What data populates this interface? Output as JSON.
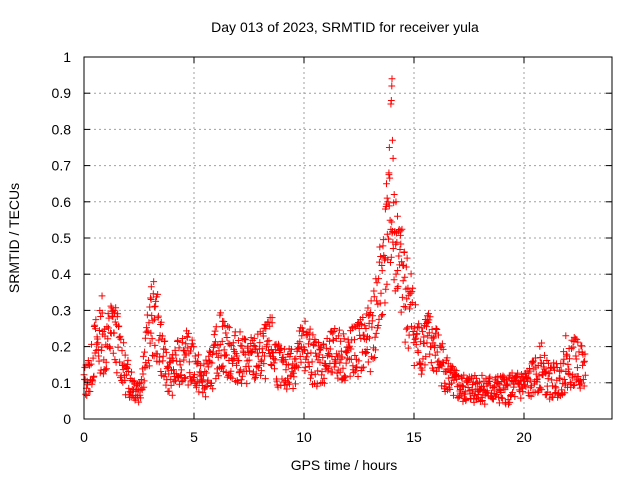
{
  "chart_data": {
    "type": "scatter",
    "title": "Day 013 of 2023, SRMTID for receiver yula",
    "xlabel": "GPS time / hours",
    "ylabel": "SRMTID / TECUs",
    "xlim": [
      0,
      24
    ],
    "ylim": [
      0,
      1
    ],
    "xticks": [
      0,
      5,
      10,
      15,
      20
    ],
    "xtick_labels": [
      "0",
      "5",
      "10",
      "15",
      "20"
    ],
    "yticks": [
      0,
      0.1,
      0.2,
      0.3,
      0.4,
      0.5,
      0.6,
      0.7,
      0.8,
      0.9,
      1
    ],
    "ytick_labels": [
      "0",
      "0.1",
      "0.2",
      "0.3",
      "0.4",
      "0.5",
      "0.6",
      "0.7",
      "0.8",
      "0.9",
      "1"
    ],
    "grid": true,
    "marker": "+",
    "color": "#ff0000",
    "series": [
      {
        "name": "SRMTID",
        "profile": [
          [
            0.0,
            0.1
          ],
          [
            0.3,
            0.13
          ],
          [
            0.5,
            0.2
          ],
          [
            0.8,
            0.22
          ],
          [
            1.0,
            0.2
          ],
          [
            1.3,
            0.25
          ],
          [
            1.6,
            0.2
          ],
          [
            1.9,
            0.12
          ],
          [
            2.2,
            0.1
          ],
          [
            2.5,
            0.08
          ],
          [
            2.8,
            0.18
          ],
          [
            3.1,
            0.28
          ],
          [
            3.4,
            0.24
          ],
          [
            3.7,
            0.14
          ],
          [
            4.0,
            0.12
          ],
          [
            4.5,
            0.18
          ],
          [
            5.0,
            0.15
          ],
          [
            5.4,
            0.1
          ],
          [
            5.8,
            0.14
          ],
          [
            6.2,
            0.22
          ],
          [
            6.6,
            0.18
          ],
          [
            7.0,
            0.17
          ],
          [
            7.5,
            0.16
          ],
          [
            8.0,
            0.17
          ],
          [
            8.5,
            0.2
          ],
          [
            9.0,
            0.13
          ],
          [
            9.5,
            0.15
          ],
          [
            10.0,
            0.2
          ],
          [
            10.5,
            0.16
          ],
          [
            11.0,
            0.16
          ],
          [
            11.5,
            0.18
          ],
          [
            12.0,
            0.17
          ],
          [
            12.5,
            0.2
          ],
          [
            13.0,
            0.22
          ],
          [
            13.3,
            0.3
          ],
          [
            13.6,
            0.42
          ],
          [
            13.9,
            0.55
          ],
          [
            14.1,
            0.48
          ],
          [
            14.3,
            0.42
          ],
          [
            14.6,
            0.35
          ],
          [
            14.9,
            0.28
          ],
          [
            15.2,
            0.2
          ],
          [
            15.5,
            0.22
          ],
          [
            15.9,
            0.2
          ],
          [
            16.3,
            0.15
          ],
          [
            16.7,
            0.1
          ],
          [
            17.2,
            0.08
          ],
          [
            17.8,
            0.09
          ],
          [
            18.5,
            0.08
          ],
          [
            19.2,
            0.08
          ],
          [
            19.8,
            0.09
          ],
          [
            20.3,
            0.1
          ],
          [
            20.7,
            0.14
          ],
          [
            21.2,
            0.1
          ],
          [
            21.7,
            0.12
          ],
          [
            22.2,
            0.16
          ],
          [
            22.8,
            0.14
          ]
        ],
        "peaks": [
          [
            13.78,
            0.61
          ],
          [
            13.86,
            0.68
          ],
          [
            13.88,
            0.75
          ],
          [
            13.95,
            0.87
          ],
          [
            13.97,
            0.88
          ],
          [
            13.99,
            0.92
          ],
          [
            14.0,
            0.94
          ],
          [
            14.02,
            0.77
          ],
          [
            14.05,
            0.72
          ],
          [
            13.75,
            0.65
          ],
          [
            13.7,
            0.58
          ],
          [
            14.1,
            0.62
          ],
          [
            14.18,
            0.6
          ],
          [
            14.25,
            0.56
          ],
          [
            14.4,
            0.52
          ],
          [
            14.55,
            0.46
          ],
          [
            14.65,
            0.42
          ],
          [
            0.82,
            0.34
          ],
          [
            3.05,
            0.33
          ],
          [
            3.2,
            0.31
          ],
          [
            1.35,
            0.3
          ],
          [
            6.3,
            0.27
          ],
          [
            8.55,
            0.28
          ],
          [
            10.05,
            0.27
          ],
          [
            12.85,
            0.29
          ],
          [
            15.6,
            0.27
          ],
          [
            21.9,
            0.23
          ],
          [
            22.4,
            0.22
          ],
          [
            20.8,
            0.21
          ],
          [
            11.4,
            0.25
          ]
        ]
      }
    ]
  }
}
